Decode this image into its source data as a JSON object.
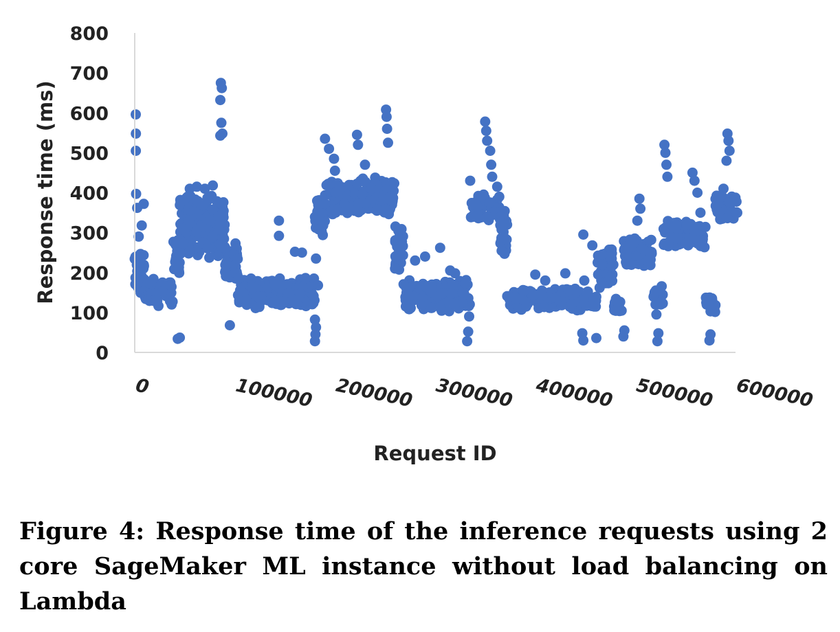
{
  "chart_data": {
    "type": "scatter",
    "xlabel": "Request ID",
    "ylabel": "Response time (ms)",
    "xlim": [
      0,
      600000
    ],
    "ylim": [
      0,
      800
    ],
    "x_ticks": [
      "0",
      "100000",
      "200000",
      "300000",
      "400000",
      "500000",
      "600000"
    ],
    "y_ticks": [
      "0",
      "100",
      "200",
      "300",
      "400",
      "500",
      "600",
      "700",
      "800"
    ],
    "grid": false,
    "legend": "none",
    "color": "#4472C4",
    "series": [
      {
        "segments": [
          {
            "x": [
              0,
              10000
            ],
            "y": [
              130,
              260
            ]
          },
          {
            "x": [
              10000,
              38000
            ],
            "y": [
              115,
              185
            ]
          },
          {
            "x": [
              38000,
              45000
            ],
            "y": [
              180,
              290
            ]
          },
          {
            "x": [
              45000,
              90000
            ],
            "y": [
              230,
              400
            ]
          },
          {
            "x": [
              90000,
              103000
            ],
            "y": [
              170,
              280
            ]
          },
          {
            "x": [
              103000,
              180000
            ],
            "y": [
              110,
              190
            ]
          },
          {
            "x": [
              180000,
              190000
            ],
            "y": [
              280,
              400
            ]
          },
          {
            "x": [
              190000,
              260000
            ],
            "y": [
              340,
              440
            ]
          },
          {
            "x": [
              260000,
              268000
            ],
            "y": [
              200,
              340
            ]
          },
          {
            "x": [
              268000,
              335000
            ],
            "y": [
              100,
              185
            ]
          },
          {
            "x": [
              335000,
              365000
            ],
            "y": [
              330,
              400
            ]
          },
          {
            "x": [
              365000,
              372000
            ],
            "y": [
              230,
              360
            ]
          },
          {
            "x": [
              372000,
              462000
            ],
            "y": [
              105,
              165
            ]
          },
          {
            "x": [
              462000,
              478000
            ],
            "y": [
              160,
              260
            ]
          },
          {
            "x": [
              478000,
              488000
            ],
            "y": [
              100,
              140
            ]
          },
          {
            "x": [
              488000,
              518000
            ],
            "y": [
              210,
              290
            ]
          },
          {
            "x": [
              518000,
              528000
            ],
            "y": [
              110,
              170
            ]
          },
          {
            "x": [
              528000,
              570000
            ],
            "y": [
              260,
              330
            ]
          },
          {
            "x": [
              570000,
              580000
            ],
            "y": [
              100,
              150
            ]
          },
          {
            "x": [
              580000,
              603000
            ],
            "y": [
              330,
              400
            ]
          }
        ],
        "points": [
          {
            "x": 1000,
            "y": 596
          },
          {
            "x": 1200,
            "y": 548
          },
          {
            "x": 1100,
            "y": 505
          },
          {
            "x": 1400,
            "y": 397
          },
          {
            "x": 2500,
            "y": 362
          },
          {
            "x": 9000,
            "y": 372
          },
          {
            "x": 7000,
            "y": 318
          },
          {
            "x": 4000,
            "y": 290
          },
          {
            "x": 43000,
            "y": 34
          },
          {
            "x": 45000,
            "y": 37
          },
          {
            "x": 55000,
            "y": 410
          },
          {
            "x": 62000,
            "y": 415
          },
          {
            "x": 70000,
            "y": 410
          },
          {
            "x": 78000,
            "y": 418
          },
          {
            "x": 86000,
            "y": 675
          },
          {
            "x": 87000,
            "y": 662
          },
          {
            "x": 85500,
            "y": 632
          },
          {
            "x": 86500,
            "y": 575
          },
          {
            "x": 85500,
            "y": 543
          },
          {
            "x": 87500,
            "y": 548
          },
          {
            "x": 95000,
            "y": 68
          },
          {
            "x": 144000,
            "y": 330
          },
          {
            "x": 144000,
            "y": 292
          },
          {
            "x": 160000,
            "y": 252
          },
          {
            "x": 167000,
            "y": 250
          },
          {
            "x": 180000,
            "y": 28
          },
          {
            "x": 180500,
            "y": 45
          },
          {
            "x": 181000,
            "y": 63
          },
          {
            "x": 180000,
            "y": 82
          },
          {
            "x": 181000,
            "y": 235
          },
          {
            "x": 179000,
            "y": 185
          },
          {
            "x": 183000,
            "y": 168
          },
          {
            "x": 190000,
            "y": 535
          },
          {
            "x": 194000,
            "y": 510
          },
          {
            "x": 199000,
            "y": 485
          },
          {
            "x": 200000,
            "y": 455
          },
          {
            "x": 222000,
            "y": 545
          },
          {
            "x": 223000,
            "y": 520
          },
          {
            "x": 230000,
            "y": 470
          },
          {
            "x": 251000,
            "y": 608
          },
          {
            "x": 251500,
            "y": 590
          },
          {
            "x": 252000,
            "y": 560
          },
          {
            "x": 253000,
            "y": 525
          },
          {
            "x": 260000,
            "y": 210
          },
          {
            "x": 280000,
            "y": 230
          },
          {
            "x": 290000,
            "y": 240
          },
          {
            "x": 305000,
            "y": 262
          },
          {
            "x": 315000,
            "y": 205
          },
          {
            "x": 320000,
            "y": 198
          },
          {
            "x": 332000,
            "y": 28
          },
          {
            "x": 333000,
            "y": 52
          },
          {
            "x": 334000,
            "y": 90
          },
          {
            "x": 335000,
            "y": 430
          },
          {
            "x": 350000,
            "y": 578
          },
          {
            "x": 351000,
            "y": 555
          },
          {
            "x": 352000,
            "y": 530
          },
          {
            "x": 355000,
            "y": 505
          },
          {
            "x": 356000,
            "y": 470
          },
          {
            "x": 357000,
            "y": 440
          },
          {
            "x": 362000,
            "y": 415
          },
          {
            "x": 400000,
            "y": 195
          },
          {
            "x": 410000,
            "y": 180
          },
          {
            "x": 430000,
            "y": 198
          },
          {
            "x": 448000,
            "y": 295
          },
          {
            "x": 449000,
            "y": 180
          },
          {
            "x": 447000,
            "y": 48
          },
          {
            "x": 448000,
            "y": 30
          },
          {
            "x": 457000,
            "y": 268
          },
          {
            "x": 461000,
            "y": 36
          },
          {
            "x": 467000,
            "y": 220
          },
          {
            "x": 488000,
            "y": 40
          },
          {
            "x": 489000,
            "y": 55
          },
          {
            "x": 504000,
            "y": 385
          },
          {
            "x": 505000,
            "y": 360
          },
          {
            "x": 502000,
            "y": 330
          },
          {
            "x": 522000,
            "y": 28
          },
          {
            "x": 523000,
            "y": 48
          },
          {
            "x": 521000,
            "y": 95
          },
          {
            "x": 529000,
            "y": 520
          },
          {
            "x": 530000,
            "y": 500
          },
          {
            "x": 531000,
            "y": 470
          },
          {
            "x": 532000,
            "y": 440
          },
          {
            "x": 557000,
            "y": 450
          },
          {
            "x": 559000,
            "y": 430
          },
          {
            "x": 562000,
            "y": 400
          },
          {
            "x": 565000,
            "y": 350
          },
          {
            "x": 574000,
            "y": 30
          },
          {
            "x": 575000,
            "y": 45
          },
          {
            "x": 592000,
            "y": 548
          },
          {
            "x": 593000,
            "y": 530
          },
          {
            "x": 594000,
            "y": 505
          },
          {
            "x": 591000,
            "y": 480
          },
          {
            "x": 588000,
            "y": 410
          }
        ]
      }
    ]
  },
  "caption": "Figure 4: Response time of the inference requests using 2 core SageMaker ML instance without load balancing on Lambda"
}
